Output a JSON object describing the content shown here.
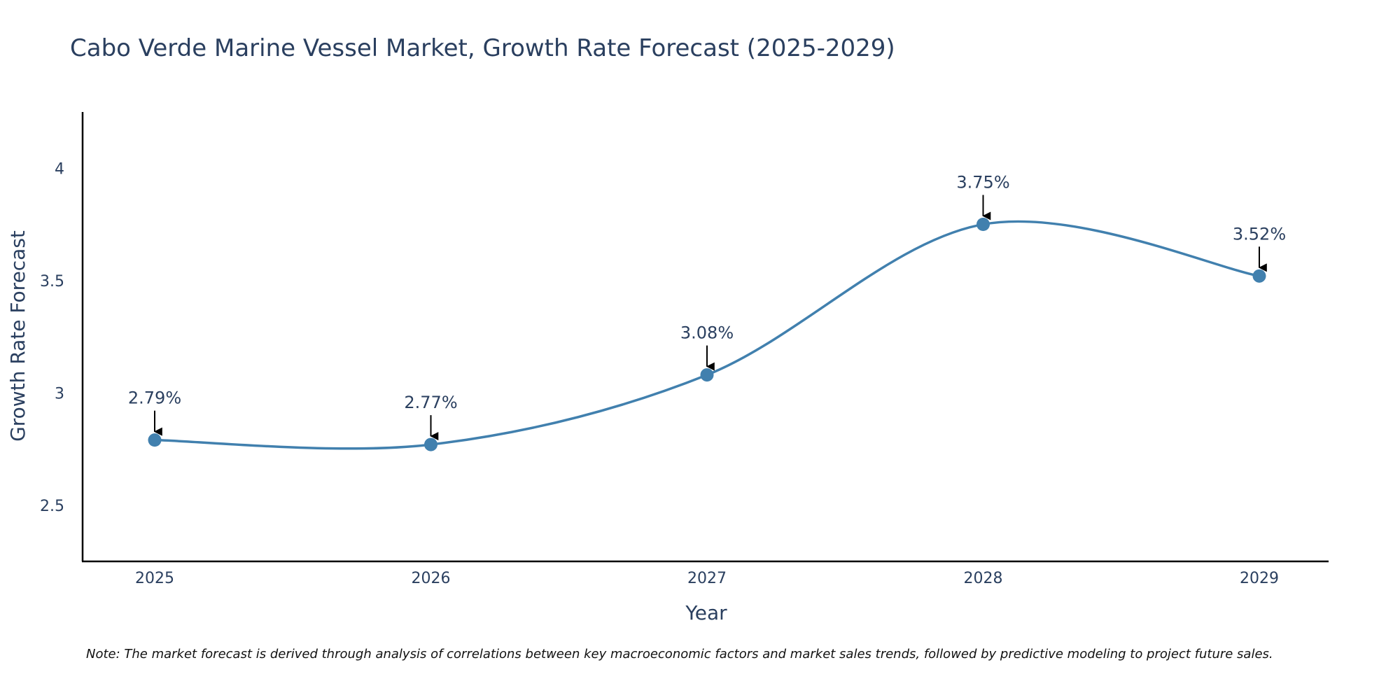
{
  "chart_data": {
    "type": "line",
    "title": "Cabo Verde Marine Vessel Market, Growth Rate Forecast (2025-2029)",
    "xlabel": "Year",
    "ylabel": "Growth Rate Forecast",
    "categories": [
      "2025",
      "2026",
      "2027",
      "2028",
      "2029"
    ],
    "series": [
      {
        "name": "Growth Rate Forecast",
        "values": [
          2.79,
          2.77,
          3.08,
          3.75,
          3.52
        ],
        "labels": [
          "2.79%",
          "2.77%",
          "3.08%",
          "3.75%",
          "3.52%"
        ]
      }
    ],
    "yticks": [
      "2.5",
      "3",
      "3.5",
      "4"
    ],
    "ylim": [
      2.25,
      4.25
    ],
    "grid": false,
    "line_color": "#4180ae",
    "note": "Note: The market forecast is derived through analysis of correlations between key macroeconomic factors and market sales trends, followed by predictive modeling to project future sales."
  }
}
